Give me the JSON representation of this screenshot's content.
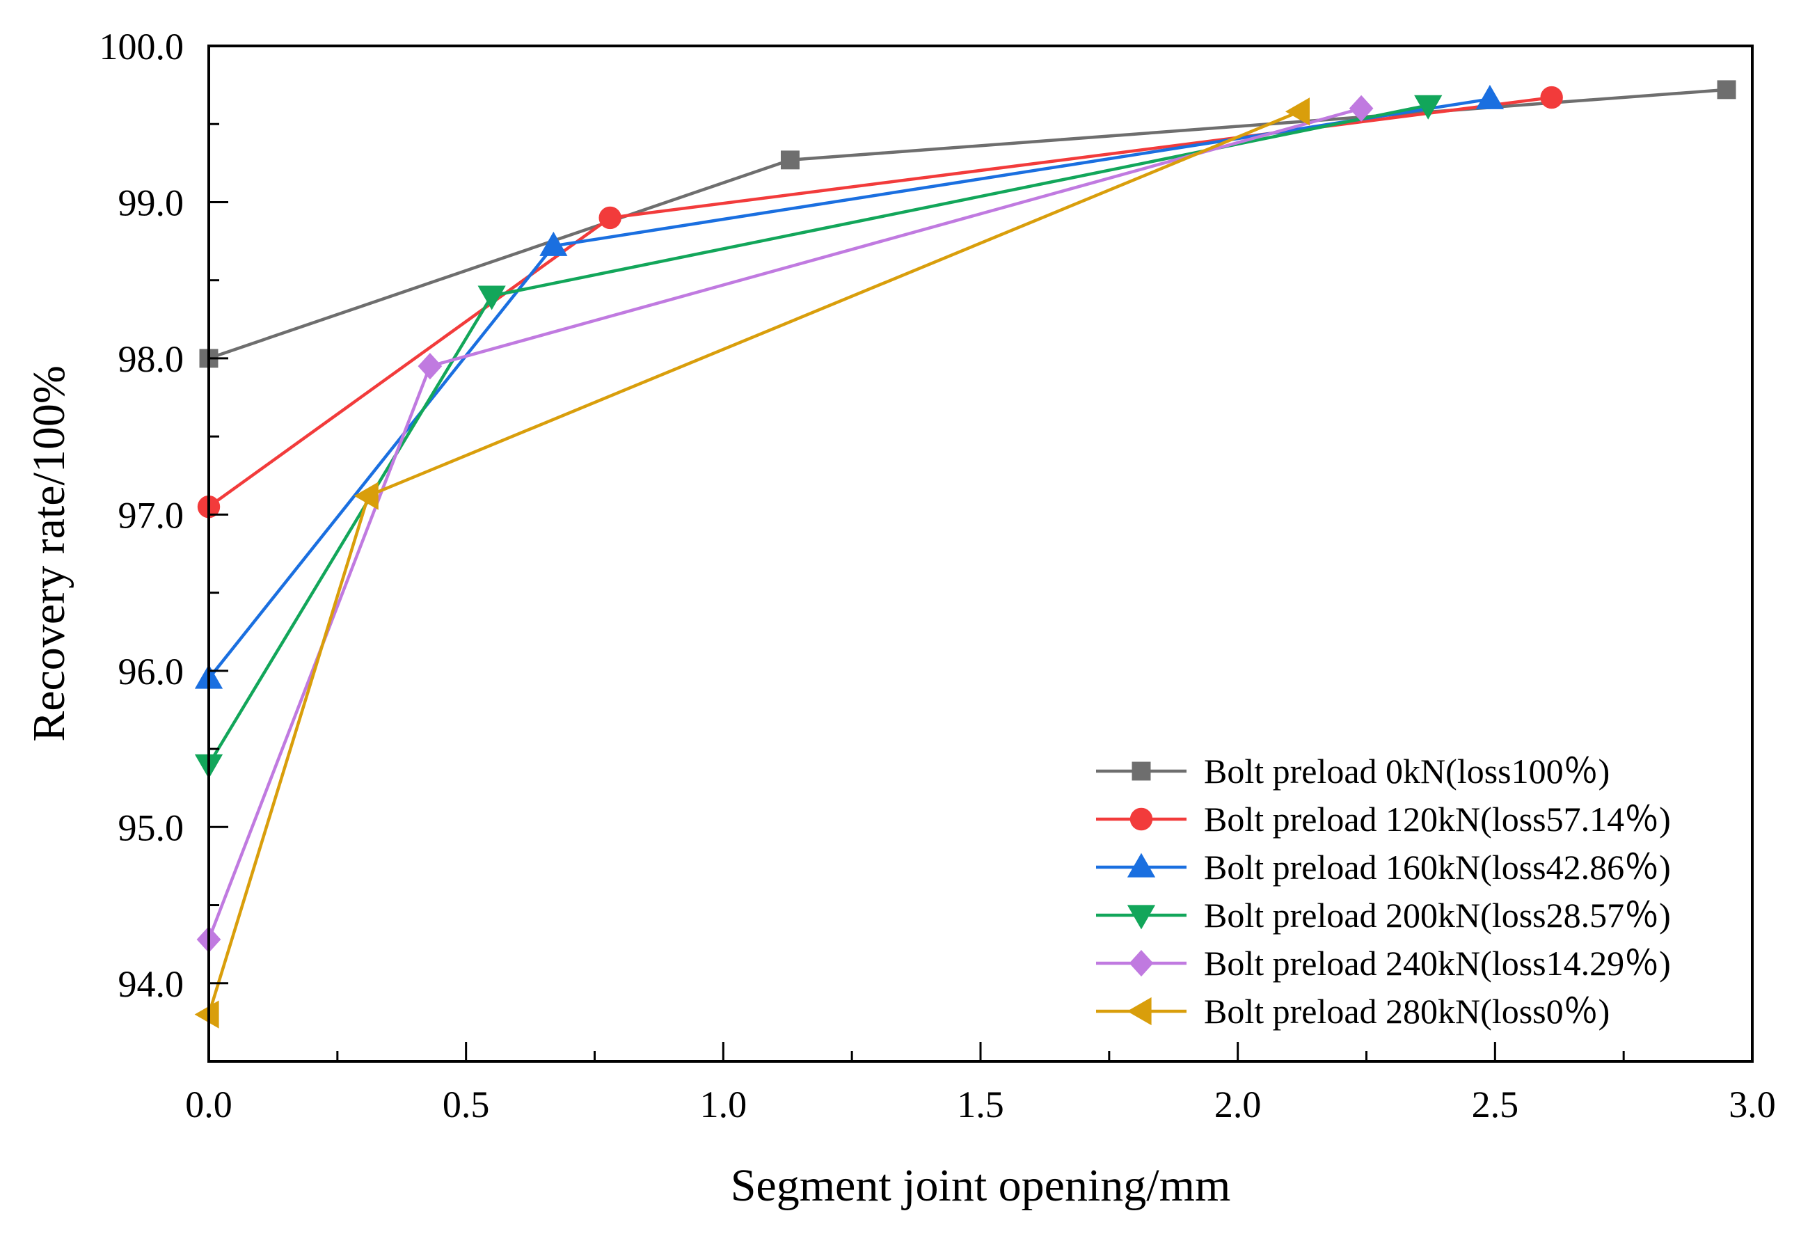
{
  "chart_data": {
    "type": "line",
    "title": "",
    "xlabel": "Segment joint opening/mm",
    "ylabel": "Recovery rate/100%",
    "xlim": [
      0.0,
      3.0
    ],
    "ylim": [
      93.5,
      100.0
    ],
    "xticks": [
      0.0,
      0.5,
      1.0,
      1.5,
      2.0,
      2.5,
      3.0
    ],
    "xtick_labels": [
      "0.0",
      "0.5",
      "1.0",
      "1.5",
      "2.0",
      "2.5",
      "3.0"
    ],
    "yticks": [
      94.0,
      95.0,
      96.0,
      97.0,
      98.0,
      99.0,
      100.0
    ],
    "ytick_labels": [
      "94.0",
      "95.0",
      "96.0",
      "97.0",
      "98.0",
      "99.0",
      "100.0"
    ],
    "legend_position": "bottom-right",
    "series": [
      {
        "name": "Bolt preload 0kN(loss100％)",
        "color": "#6e6e6e",
        "marker": "square",
        "points": [
          [
            0.0,
            98.0
          ],
          [
            1.13,
            99.27
          ],
          [
            2.95,
            99.72
          ]
        ]
      },
      {
        "name": "Bolt preload 120kN(loss57.14％)",
        "color": "#f23b3b",
        "marker": "circle",
        "points": [
          [
            0.0,
            97.05
          ],
          [
            0.78,
            98.9
          ],
          [
            2.61,
            99.67
          ]
        ]
      },
      {
        "name": "Bolt preload 160kN(loss42.86％)",
        "color": "#1a6fe0",
        "marker": "triangle-up",
        "points": [
          [
            0.0,
            95.95
          ],
          [
            0.67,
            98.72
          ],
          [
            2.49,
            99.66
          ]
        ]
      },
      {
        "name": "Bolt preload 200kN(loss28.57％)",
        "color": "#12a65a",
        "marker": "triangle-down",
        "points": [
          [
            0.0,
            95.4
          ],
          [
            0.55,
            98.4
          ],
          [
            2.37,
            99.62
          ]
        ]
      },
      {
        "name": "Bolt preload 240kN(loss14.29％)",
        "color": "#c07ae0",
        "marker": "diamond",
        "points": [
          [
            0.0,
            94.28
          ],
          [
            0.43,
            97.95
          ],
          [
            2.24,
            99.6
          ]
        ]
      },
      {
        "name": "Bolt preload 280kN(loss0％)",
        "color": "#d99e0b",
        "marker": "triangle-left",
        "points": [
          [
            0.0,
            93.8
          ],
          [
            0.31,
            97.12
          ],
          [
            2.12,
            99.58
          ]
        ]
      }
    ]
  }
}
